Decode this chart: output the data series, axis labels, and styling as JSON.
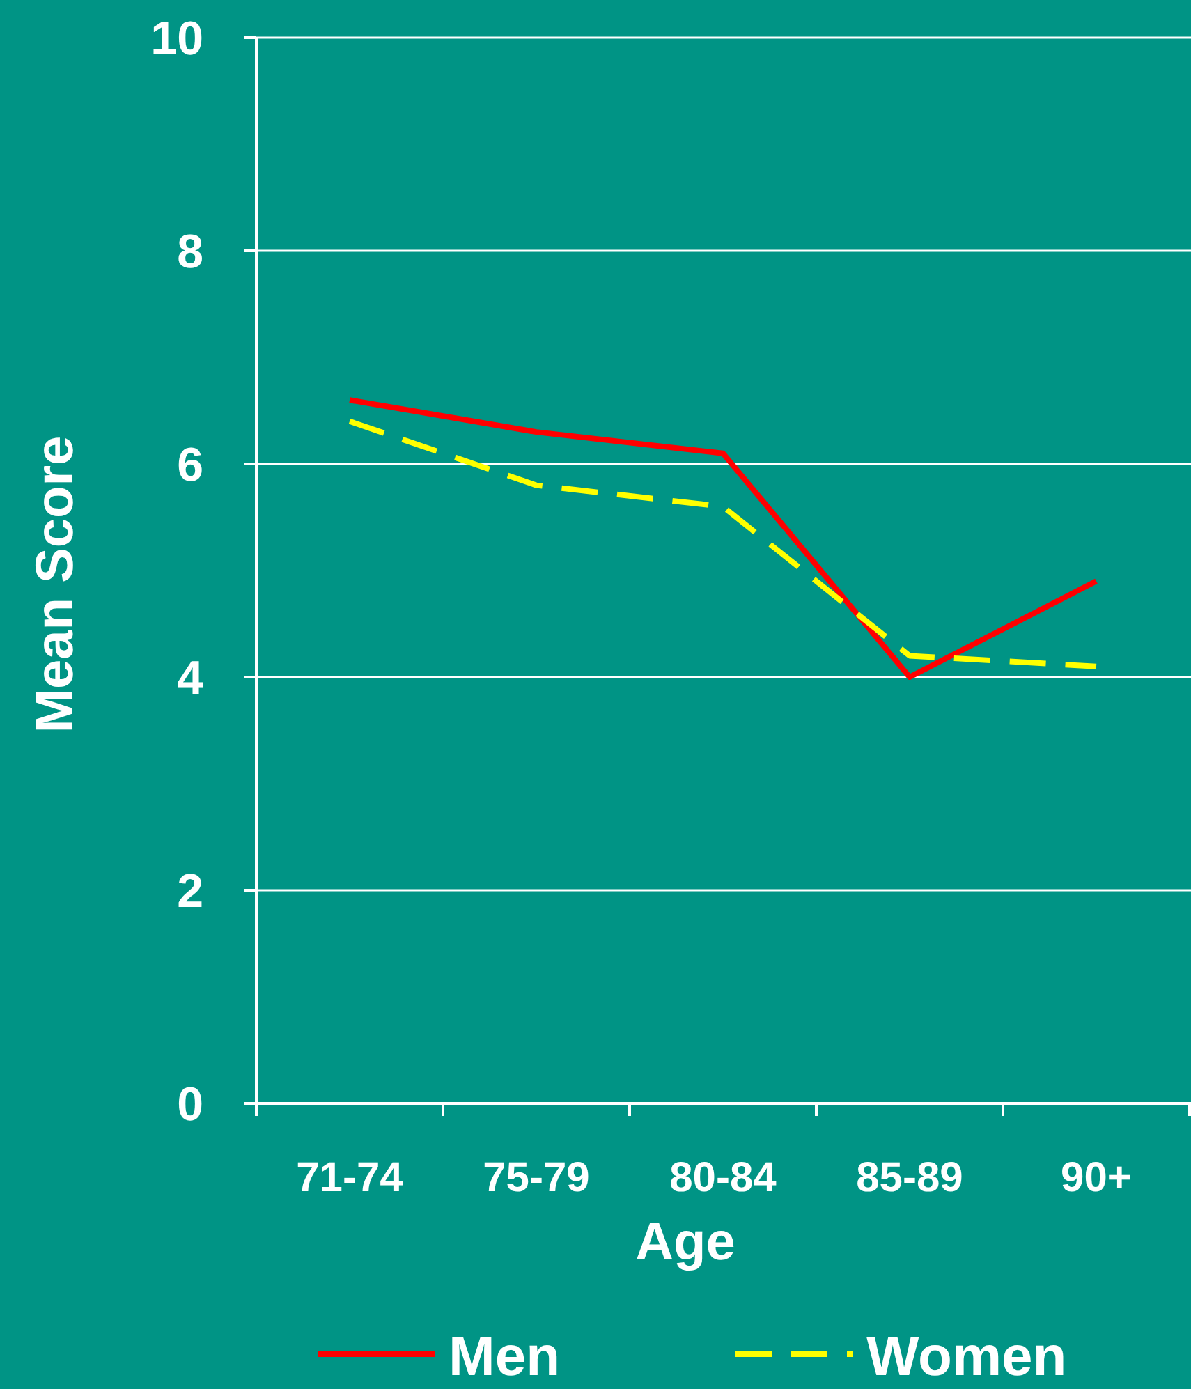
{
  "chart_data": {
    "type": "line",
    "xlabel": "Age",
    "ylabel": "Mean Score",
    "categories": [
      "71-74",
      "75-79",
      "80-84",
      "85-89",
      "90+"
    ],
    "series": [
      {
        "name": "Men",
        "color": "#ff0000",
        "line_style": "solid",
        "values": [
          6.6,
          6.3,
          6.1,
          4.0,
          4.9
        ]
      },
      {
        "name": "Women",
        "color": "#ffff00",
        "line_style": "dashed",
        "values": [
          6.4,
          5.8,
          5.6,
          4.2,
          4.1
        ]
      }
    ],
    "ylim": [
      0,
      10
    ],
    "yticks": [
      0,
      2,
      4,
      6,
      8,
      10
    ],
    "grid": "y",
    "legend": "bottom",
    "marker": "none"
  }
}
